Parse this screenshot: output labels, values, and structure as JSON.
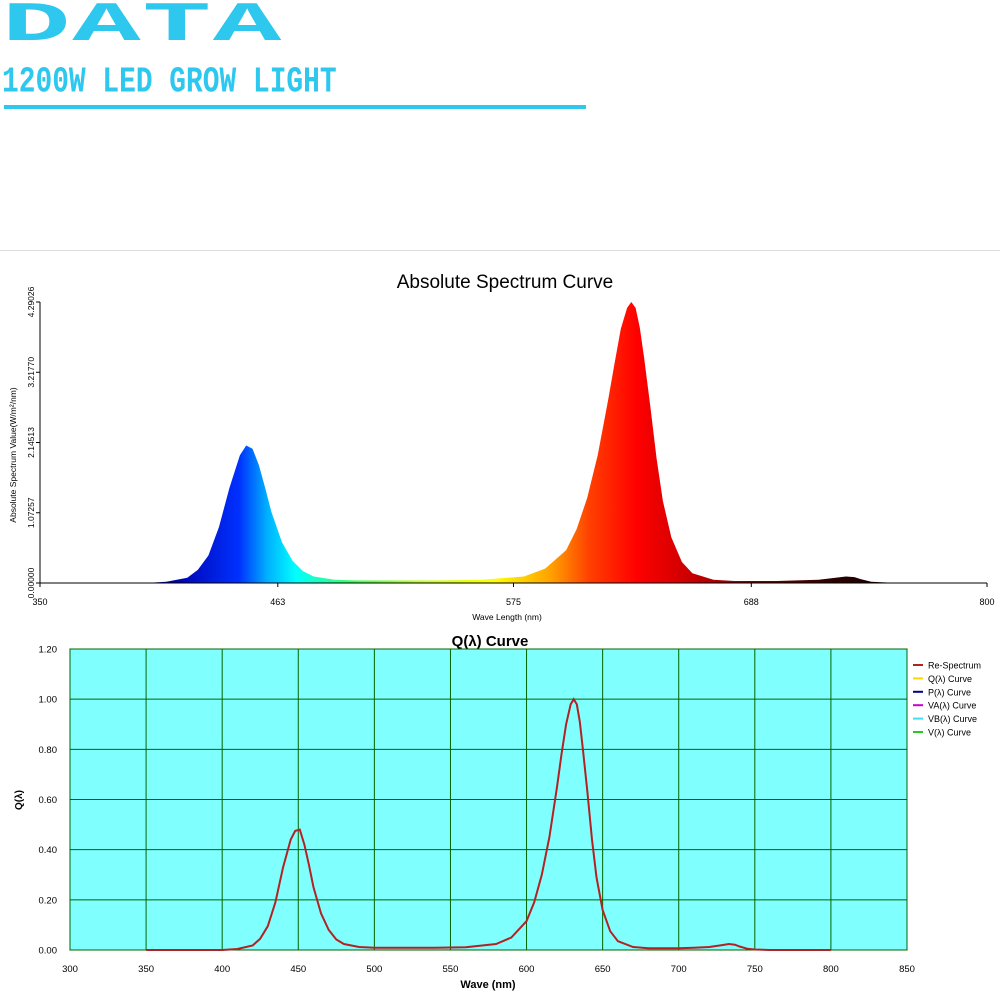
{
  "header": {
    "title": "DATA",
    "subtitle": "1200W LED GROW LIGHT",
    "accent_color": "#2ec8ef"
  },
  "chart_data": [
    {
      "type": "area",
      "title": "Absolute Spectrum Curve",
      "xlabel": "Wave Length (nm)",
      "ylabel": "Absolute Spectrum Value(W/m²/nm)",
      "xlim": [
        350,
        800
      ],
      "ylim": [
        0,
        4.29026
      ],
      "x_ticks": [
        "350",
        "463",
        "575",
        "688",
        "800"
      ],
      "y_ticks": [
        "0.00000",
        "1.07257",
        "2.14513",
        "3.21770",
        "4.29026"
      ],
      "fill": "visible-spectrum color gradient",
      "x": [
        350,
        400,
        410,
        420,
        425,
        430,
        435,
        440,
        445,
        448,
        451,
        454,
        457,
        460,
        465,
        470,
        475,
        480,
        490,
        500,
        520,
        540,
        560,
        580,
        590,
        600,
        605,
        610,
        615,
        620,
        623,
        626,
        629,
        631,
        633,
        635,
        637,
        640,
        643,
        646,
        650,
        655,
        660,
        670,
        680,
        690,
        700,
        710,
        720,
        728,
        733,
        737,
        740,
        745,
        750,
        760,
        800
      ],
      "y": [
        0,
        0,
        0.02,
        0.08,
        0.2,
        0.42,
        0.85,
        1.45,
        1.95,
        2.1,
        2.05,
        1.8,
        1.45,
        1.08,
        0.62,
        0.34,
        0.18,
        0.1,
        0.05,
        0.04,
        0.04,
        0.04,
        0.05,
        0.1,
        0.22,
        0.5,
        0.82,
        1.3,
        1.95,
        2.8,
        3.35,
        3.88,
        4.2,
        4.29,
        4.2,
        3.9,
        3.45,
        2.7,
        1.9,
        1.25,
        0.7,
        0.32,
        0.15,
        0.05,
        0.03,
        0.03,
        0.03,
        0.04,
        0.05,
        0.08,
        0.1,
        0.09,
        0.06,
        0.02,
        0.01,
        0,
        0
      ]
    },
    {
      "type": "line",
      "title": "Q(λ) Curve",
      "xlabel": "Wave (nm)",
      "ylabel": "Q(λ)",
      "xlim": [
        300,
        850
      ],
      "ylim": [
        0,
        1.2
      ],
      "x_ticks": [
        "300",
        "350",
        "400",
        "450",
        "500",
        "550",
        "600",
        "650",
        "700",
        "750",
        "800",
        "850"
      ],
      "y_ticks": [
        "0.00",
        "0.20",
        "0.40",
        "0.60",
        "0.80",
        "1.00",
        "1.20"
      ],
      "grid": true,
      "background": "#80ffff",
      "grid_color": "#006400",
      "legend_position": "right",
      "legend": [
        {
          "name": "Re-Spectrum",
          "color": "#b22222"
        },
        {
          "name": "Q(λ) Curve",
          "color": "#ffd700"
        },
        {
          "name": "P(λ) Curve",
          "color": "#00008b"
        },
        {
          "name": "VA(λ) Curve",
          "color": "#cc00cc"
        },
        {
          "name": "VB(λ) Curve",
          "color": "#40e0f0"
        },
        {
          "name": "V(λ) Curve",
          "color": "#22cc22"
        }
      ],
      "series": [
        {
          "name": "Re-Spectrum",
          "x": [
            350,
            400,
            410,
            420,
            425,
            430,
            435,
            440,
            445,
            448,
            451,
            454,
            457,
            460,
            465,
            470,
            475,
            480,
            490,
            500,
            520,
            540,
            560,
            580,
            590,
            600,
            605,
            610,
            615,
            620,
            623,
            626,
            629,
            631,
            633,
            635,
            637,
            640,
            643,
            646,
            650,
            655,
            660,
            670,
            680,
            690,
            700,
            710,
            720,
            728,
            733,
            737,
            740,
            745,
            750,
            760,
            800
          ],
          "y": [
            0,
            0,
            0.004,
            0.018,
            0.045,
            0.095,
            0.19,
            0.33,
            0.44,
            0.475,
            0.48,
            0.42,
            0.34,
            0.25,
            0.145,
            0.08,
            0.042,
            0.024,
            0.012,
            0.009,
            0.009,
            0.009,
            0.011,
            0.024,
            0.05,
            0.115,
            0.19,
            0.3,
            0.45,
            0.65,
            0.78,
            0.9,
            0.98,
            1.0,
            0.98,
            0.91,
            0.8,
            0.63,
            0.44,
            0.29,
            0.16,
            0.075,
            0.035,
            0.012,
            0.007,
            0.007,
            0.007,
            0.009,
            0.012,
            0.019,
            0.024,
            0.021,
            0.014,
            0.005,
            0.002,
            0,
            0
          ]
        }
      ]
    }
  ]
}
